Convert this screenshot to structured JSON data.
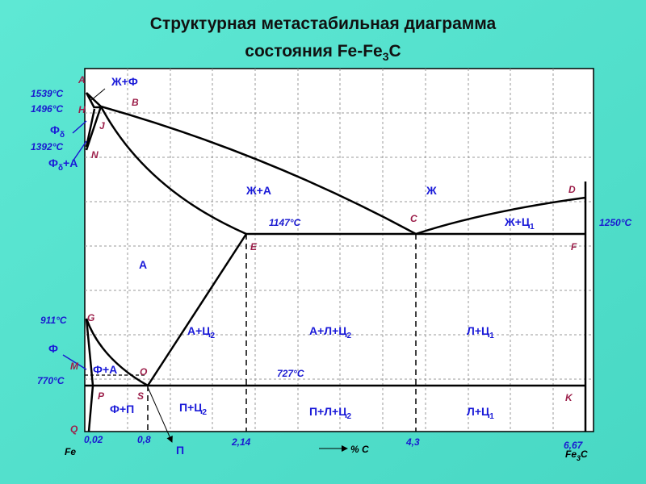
{
  "title": {
    "line1": "Структурная метастабильная диаграмма",
    "line2": "состояния Fe-Fe",
    "line2_sub": "3",
    "line2_end": "C"
  },
  "points": [
    "A",
    "H",
    "J",
    "B",
    "N",
    "D",
    "C",
    "E",
    "F",
    "G",
    "M",
    "O",
    "P",
    "S",
    "K",
    "Q"
  ],
  "temperatures": [
    "1539°C",
    "1496°C",
    "1392°C",
    "1147°C",
    "1250°C",
    "911°C",
    "770°C",
    "727°C"
  ],
  "phases": [
    {
      "text": "Ж+Ф"
    },
    {
      "text": "Ф",
      "sub": "δ"
    },
    {
      "text": "Ф",
      "sub": "δ",
      "after": "+А"
    },
    {
      "text": "Ж+А"
    },
    {
      "text": "Ж"
    },
    {
      "text": "Ж+Ц",
      "sub": "1"
    },
    {
      "text": "А"
    },
    {
      "text": "А+Ц",
      "sub": "2"
    },
    {
      "text": "А+Л+Ц",
      "sub": "2"
    },
    {
      "text": "Л+Ц",
      "sub": "1"
    },
    {
      "text": "Ф"
    },
    {
      "text": "Ф+А"
    },
    {
      "text": "Ф+П"
    },
    {
      "text": "П+Ц",
      "sub": "2"
    },
    {
      "text": "П+Л+Ц",
      "sub": "2"
    },
    {
      "text": "Л+Ц",
      "sub": "1"
    }
  ],
  "x_axis": {
    "values": [
      "0,02",
      "0,8",
      "2,14",
      "4,3",
      "6,67"
    ],
    "fe": "Fe",
    "fe3c": "Fe",
    "fe3c_sub": "3",
    "fe3c_end": "C",
    "unit": "% C",
    "pearlite": "П"
  }
}
